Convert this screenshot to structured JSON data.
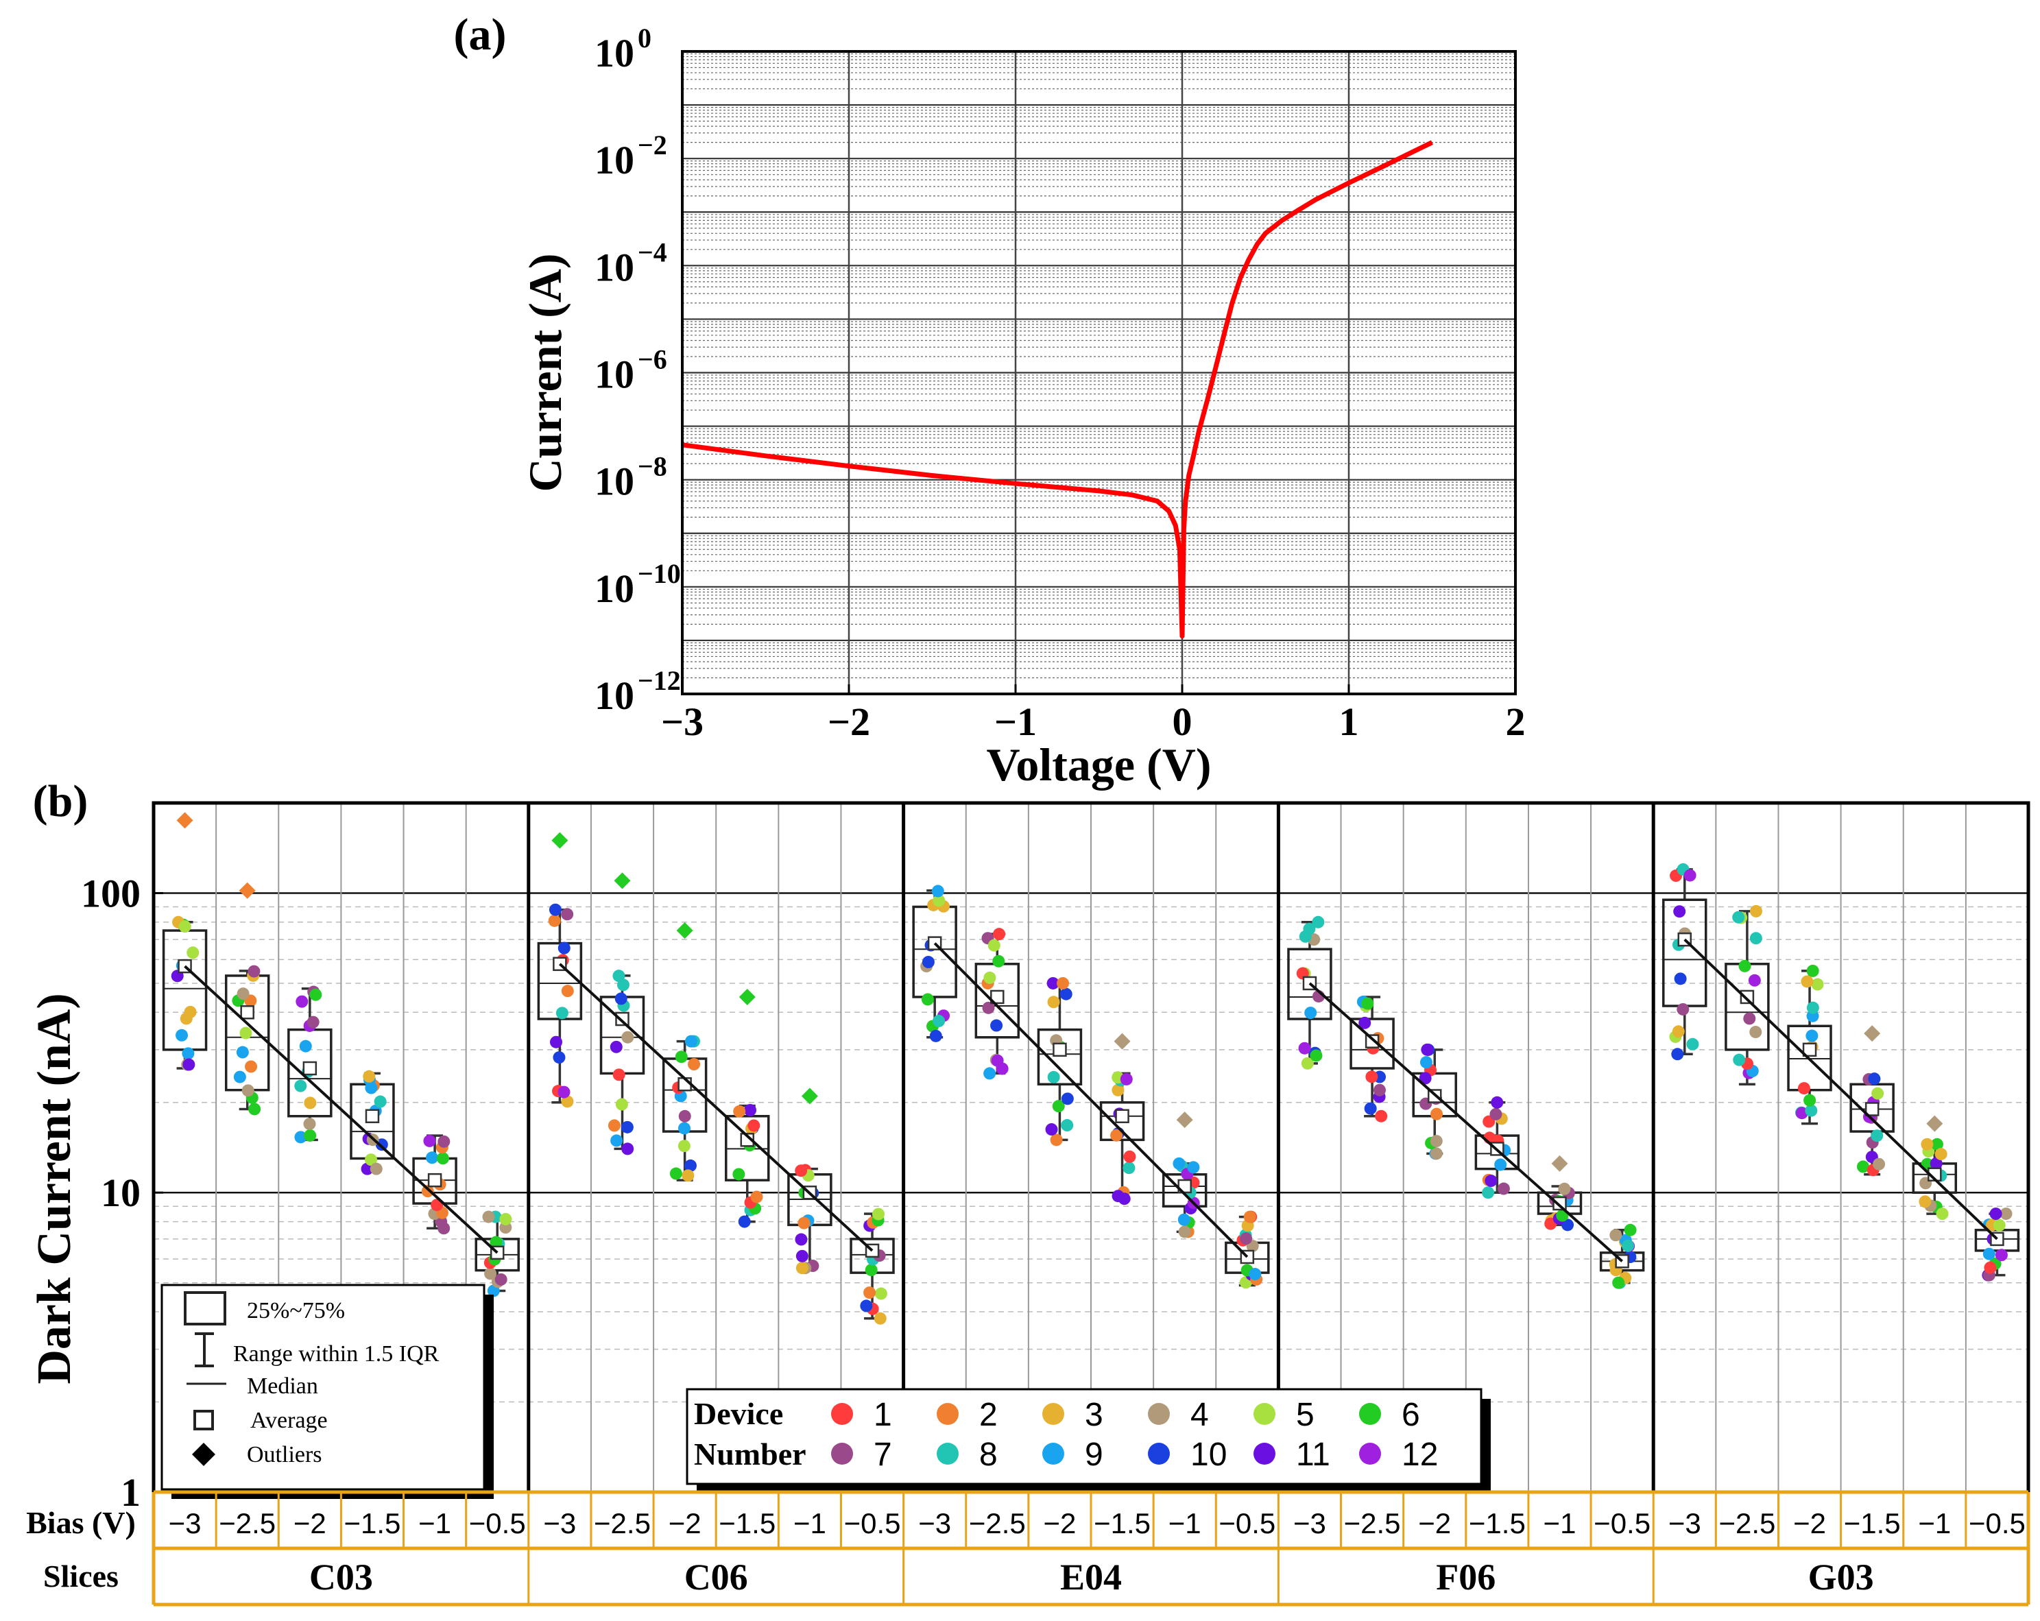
{
  "colors": {
    "curve": "#ff0000",
    "frame": "#000000",
    "table_border": "#e8a317",
    "box": "#222222",
    "fit_line": "#111111"
  },
  "chart_data": [
    {
      "panel": "(a)",
      "type": "line",
      "xlabel": "Voltage (V)",
      "ylabel": "Current (A)",
      "xscale": "linear",
      "yscale": "log",
      "xlim": [
        -3,
        2
      ],
      "ylim": [
        1e-12,
        1
      ],
      "xticks": [
        -3,
        -2,
        -1,
        0,
        1,
        2
      ],
      "yticks": [
        {
          "base": "10",
          "exp": "0"
        },
        {
          "base": "10",
          "exp": "−2"
        },
        {
          "base": "10",
          "exp": "−4"
        },
        {
          "base": "10",
          "exp": "−6"
        },
        {
          "base": "10",
          "exp": "−8"
        },
        {
          "base": "10",
          "exp": "−10"
        },
        {
          "base": "10",
          "exp": "−12"
        }
      ],
      "grid": true,
      "series": [
        {
          "name": "I-V",
          "x": [
            -3,
            -2.5,
            -2,
            -1.5,
            -1,
            -0.5,
            -0.3,
            -0.15,
            -0.08,
            -0.04,
            -0.015,
            0,
            0.01,
            0.02,
            0.04,
            0.07,
            0.1,
            0.15,
            0.2,
            0.25,
            0.3,
            0.35,
            0.4,
            0.45,
            0.5,
            0.6,
            0.7,
            0.8,
            1.0,
            1.2,
            1.5
          ],
          "y": [
            4.5e-08,
            2.8e-08,
            1.8e-08,
            1.2e-08,
            8.5e-09,
            6.2e-09,
            5.2e-09,
            4e-09,
            2.6e-09,
            1.4e-09,
            5e-10,
            1.2e-11,
            1.2e-09,
            4e-09,
            1.2e-08,
            3e-08,
            8e-08,
            3e-07,
            1.2e-06,
            5e-06,
            2e-05,
            6e-05,
            0.00013,
            0.00025,
            0.0004,
            0.0007,
            0.0011,
            0.0017,
            0.0035,
            0.007,
            0.02
          ]
        }
      ]
    },
    {
      "panel": "(b)",
      "type": "box",
      "ylabel": "Dark Current (nA)",
      "yscale": "log",
      "ylim": [
        1,
        200
      ],
      "yticks": [
        "1",
        "10",
        "100"
      ],
      "bias_label": "Bias (V)",
      "slices_label": "Slices",
      "bias": [
        "−3",
        "−2.5",
        "−2",
        "−1.5",
        "−1",
        "−0.5"
      ],
      "slices": [
        {
          "name": "C03",
          "boxes": [
            {
              "q1": 30,
              "med": 48,
              "q3": 75,
              "mean": 57,
              "wlo": 26,
              "whi": 80,
              "outliers": [
                {
                  "v": 175,
                  "c": "#f08030"
                }
              ]
            },
            {
              "q1": 22,
              "med": 33,
              "q3": 53,
              "mean": 40,
              "wlo": 19,
              "whi": 55,
              "outliers": [
                {
                  "v": 102,
                  "c": "#f08030"
                }
              ]
            },
            {
              "q1": 18,
              "med": 24,
              "q3": 35,
              "mean": 26,
              "wlo": 15,
              "whi": 48,
              "outliers": []
            },
            {
              "q1": 13,
              "med": 16,
              "q3": 23,
              "mean": 18,
              "wlo": 12,
              "whi": 25,
              "outliers": []
            },
            {
              "q1": 9.2,
              "med": 11,
              "q3": 13,
              "mean": 11,
              "wlo": 7.6,
              "whi": 15.5,
              "outliers": []
            },
            {
              "q1": 5.5,
              "med": 6.2,
              "q3": 7,
              "mean": 6.3,
              "wlo": 4.7,
              "whi": 8.3,
              "outliers": []
            }
          ]
        },
        {
          "name": "C06",
          "boxes": [
            {
              "q1": 38,
              "med": 50,
              "q3": 68,
              "mean": 58,
              "wlo": 20,
              "whi": 88,
              "outliers": [
                {
                  "v": 150,
                  "c": "#22cc22"
                }
              ]
            },
            {
              "q1": 25,
              "med": 33,
              "q3": 45,
              "mean": 38,
              "wlo": 14,
              "whi": 53,
              "outliers": [
                {
                  "v": 110,
                  "c": "#22cc22"
                }
              ]
            },
            {
              "q1": 16,
              "med": 22,
              "q3": 28,
              "mean": 23,
              "wlo": 11,
              "whi": 32,
              "outliers": [
                {
                  "v": 75,
                  "c": "#22cc22"
                }
              ]
            },
            {
              "q1": 11,
              "med": 14,
              "q3": 18,
              "mean": 15,
              "wlo": 8,
              "whi": 19.5,
              "outliers": [
                {
                  "v": 45,
                  "c": "#22cc22"
                }
              ]
            },
            {
              "q1": 7.8,
              "med": 9.5,
              "q3": 11.5,
              "mean": 10,
              "wlo": 5.6,
              "whi": 12,
              "outliers": [
                {
                  "v": 21,
                  "c": "#22cc22"
                }
              ]
            },
            {
              "q1": 5.4,
              "med": 6.2,
              "q3": 7,
              "mean": 6.4,
              "wlo": 3.8,
              "whi": 8.5,
              "outliers": []
            }
          ]
        },
        {
          "name": "E04",
          "boxes": [
            {
              "q1": 45,
              "med": 65,
              "q3": 90,
              "mean": 68,
              "wlo": 33,
              "whi": 102,
              "outliers": []
            },
            {
              "q1": 33,
              "med": 42,
              "q3": 58,
              "mean": 45,
              "wlo": 25,
              "whi": 73,
              "outliers": []
            },
            {
              "q1": 23,
              "med": 29,
              "q3": 35,
              "mean": 30,
              "wlo": 15,
              "whi": 50,
              "outliers": []
            },
            {
              "q1": 15,
              "med": 18,
              "q3": 20,
              "mean": 18,
              "wlo": 9.5,
              "whi": 25,
              "outliers": [
                {
                  "v": 32,
                  "c": "#b09a7a"
                }
              ]
            },
            {
              "q1": 9,
              "med": 10.5,
              "q3": 11.5,
              "mean": 10.5,
              "wlo": 7.4,
              "whi": 12.5,
              "outliers": [
                {
                  "v": 17.5,
                  "c": "#b09a7a"
                }
              ]
            },
            {
              "q1": 5.4,
              "med": 6,
              "q3": 6.8,
              "mean": 6.1,
              "wlo": 4.9,
              "whi": 8.3,
              "outliers": []
            }
          ]
        },
        {
          "name": "F06",
          "boxes": [
            {
              "q1": 38,
              "med": 45,
              "q3": 65,
              "mean": 50,
              "wlo": 27,
              "whi": 80,
              "outliers": []
            },
            {
              "q1": 26,
              "med": 30,
              "q3": 38,
              "mean": 32,
              "wlo": 18,
              "whi": 45,
              "outliers": []
            },
            {
              "q1": 18,
              "med": 20,
              "q3": 25,
              "mean": 21,
              "wlo": 13.5,
              "whi": 30,
              "outliers": []
            },
            {
              "q1": 12,
              "med": 13.5,
              "q3": 15.5,
              "mean": 14,
              "wlo": 10,
              "whi": 20,
              "outliers": []
            },
            {
              "q1": 8.5,
              "med": 9,
              "q3": 10,
              "mean": 9.2,
              "wlo": 7.8,
              "whi": 10.5,
              "outliers": [
                {
                  "v": 12.5,
                  "c": "#b09a7a"
                }
              ]
            },
            {
              "q1": 5.5,
              "med": 5.9,
              "q3": 6.3,
              "mean": 5.9,
              "wlo": 5,
              "whi": 7.5,
              "outliers": []
            }
          ]
        },
        {
          "name": "G03",
          "boxes": [
            {
              "q1": 42,
              "med": 60,
              "q3": 95,
              "mean": 70,
              "wlo": 29,
              "whi": 120,
              "outliers": []
            },
            {
              "q1": 30,
              "med": 40,
              "q3": 58,
              "mean": 45,
              "wlo": 23,
              "whi": 87,
              "outliers": []
            },
            {
              "q1": 22,
              "med": 28,
              "q3": 36,
              "mean": 30,
              "wlo": 17,
              "whi": 55,
              "outliers": []
            },
            {
              "q1": 16,
              "med": 19,
              "q3": 23,
              "mean": 19,
              "wlo": 11.5,
              "whi": 24,
              "outliers": [
                {
                  "v": 34,
                  "c": "#b09a7a"
                }
              ]
            },
            {
              "q1": 10,
              "med": 11.5,
              "q3": 12.5,
              "mean": 11.5,
              "wlo": 8.5,
              "whi": 14.5,
              "outliers": [
                {
                  "v": 17,
                  "c": "#b09a7a"
                }
              ]
            },
            {
              "q1": 6.4,
              "med": 7,
              "q3": 7.5,
              "mean": 7,
              "wlo": 5.3,
              "whi": 8.5,
              "outliers": []
            }
          ]
        }
      ],
      "box_legend": {
        "box": "25%~75%",
        "range": "Range within 1.5 IQR",
        "median": "Median",
        "average": "Average",
        "outliers": "Outliers"
      },
      "device_legend": {
        "title_line1": "Device",
        "title_line2": "Number",
        "items": [
          {
            "label": "1",
            "color": "#ff3b3b"
          },
          {
            "label": "2",
            "color": "#f08030"
          },
          {
            "label": "3",
            "color": "#e6b030"
          },
          {
            "label": "4",
            "color": "#b09a7a"
          },
          {
            "label": "5",
            "color": "#a8e040"
          },
          {
            "label": "6",
            "color": "#22cc22"
          },
          {
            "label": "7",
            "color": "#9a4a8a"
          },
          {
            "label": "8",
            "color": "#22c4b4"
          },
          {
            "label": "9",
            "color": "#1aa4f0"
          },
          {
            "label": "10",
            "color": "#1a40e0"
          },
          {
            "label": "11",
            "color": "#6a10e0"
          },
          {
            "label": "12",
            "color": "#a020e0"
          }
        ]
      }
    }
  ]
}
